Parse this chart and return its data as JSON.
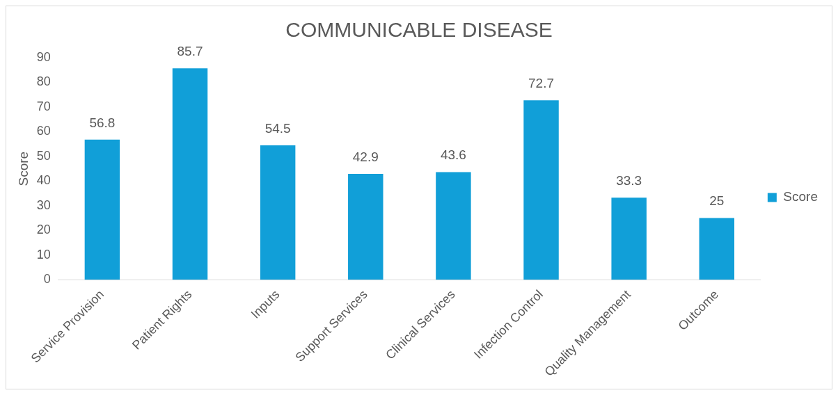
{
  "chart_data": {
    "type": "bar",
    "title": "COMMUNICABLE DISEASE",
    "ylabel": "Score",
    "categories": [
      "Service Provision",
      "Patient Rights",
      "Inputs",
      "Support Services",
      "Clinical Services",
      "Infection Control",
      "Quality Management",
      "Outcome"
    ],
    "series": [
      {
        "name": "Score",
        "color": "#119fd8",
        "values": [
          56.8,
          85.7,
          54.5,
          42.9,
          43.6,
          72.7,
          33.3,
          25
        ]
      }
    ],
    "ylim": [
      0,
      90
    ],
    "yticks": [
      0,
      10,
      20,
      30,
      40,
      50,
      60,
      70,
      80,
      90
    ],
    "grid": false,
    "legend": "right",
    "data_labels": true
  }
}
